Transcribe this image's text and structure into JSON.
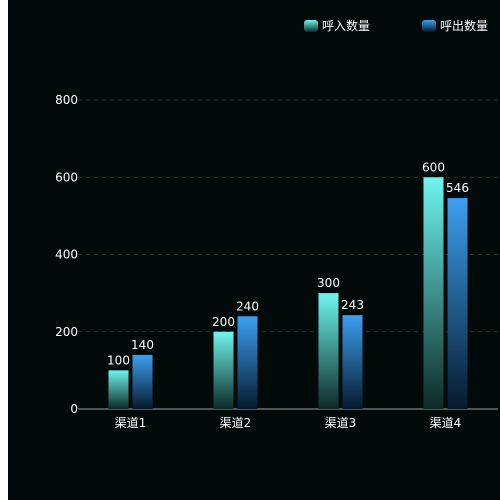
{
  "chart_data": {
    "type": "bar",
    "title": "",
    "xlabel": "",
    "ylabel": "",
    "categories": [
      "渠道1",
      "渠道2",
      "渠道3",
      "渠道4"
    ],
    "series": [
      {
        "name": "呼入数量",
        "values": [
          100,
          200,
          300,
          600
        ],
        "color_top": "#6ff5ee",
        "color_bottom": "#0d2a27"
      },
      {
        "name": "呼出数量",
        "values": [
          140,
          240,
          243,
          546
        ],
        "color_top": "#3d9ff0",
        "color_bottom": "#061a2e"
      }
    ],
    "yticks": [
      0,
      200,
      400,
      600,
      800
    ],
    "ylim": [
      0,
      800
    ],
    "grid": true,
    "legend_position": "top-right",
    "data_labels": true
  }
}
